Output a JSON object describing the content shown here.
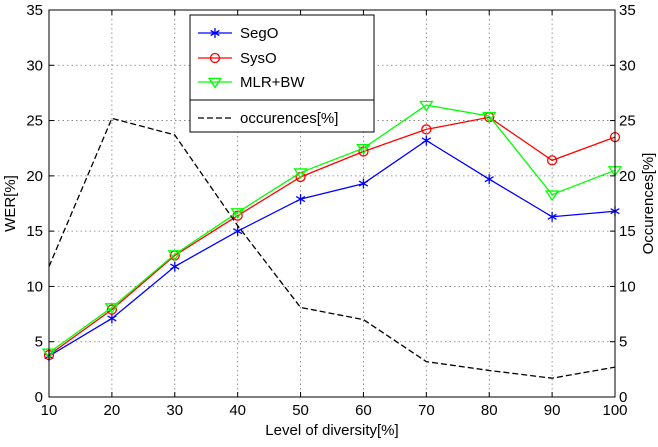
{
  "chart_data": {
    "type": "line",
    "title": "",
    "xlabel": "Level of diversity[%]",
    "ylabel_left": "WER[%]",
    "ylabel_right": "Occurences[%]",
    "x": [
      10,
      20,
      30,
      40,
      50,
      60,
      70,
      80,
      90,
      100
    ],
    "xticks": [
      "10",
      "20",
      "30",
      "40",
      "50",
      "60",
      "70",
      "80",
      "90",
      "100"
    ],
    "xlim": [
      10,
      100
    ],
    "ylim_left": [
      0,
      35
    ],
    "ylim_right": [
      0,
      35
    ],
    "yticks": [
      "0",
      "5",
      "10",
      "15",
      "20",
      "25",
      "30",
      "35"
    ],
    "grid": true,
    "legend_position": "top-center",
    "series": [
      {
        "name": "SegO",
        "axis": "left",
        "color": "#0000ff",
        "marker": "asterisk",
        "line_style": "solid",
        "values": [
          3.7,
          7.1,
          11.8,
          15.0,
          17.9,
          19.3,
          23.2,
          19.7,
          16.3,
          16.8
        ]
      },
      {
        "name": "SysO",
        "axis": "left",
        "color": "#ff0000",
        "marker": "circle",
        "line_style": "solid",
        "values": [
          3.8,
          7.9,
          12.8,
          16.4,
          19.9,
          22.2,
          24.2,
          25.3,
          21.4,
          23.5
        ]
      },
      {
        "name": "MLR+BW",
        "axis": "left",
        "color": "#00ff00",
        "marker": "triangle-down",
        "line_style": "solid",
        "values": [
          4.0,
          8.1,
          12.9,
          16.7,
          20.3,
          22.5,
          26.4,
          25.4,
          18.3,
          20.5
        ]
      },
      {
        "name": "occurences[%]",
        "axis": "right",
        "color": "#000000",
        "marker": "none",
        "line_style": "dashed",
        "values": [
          11.8,
          25.2,
          23.7,
          15.5,
          8.1,
          7.0,
          3.2,
          2.4,
          1.7,
          2.7
        ]
      }
    ]
  }
}
